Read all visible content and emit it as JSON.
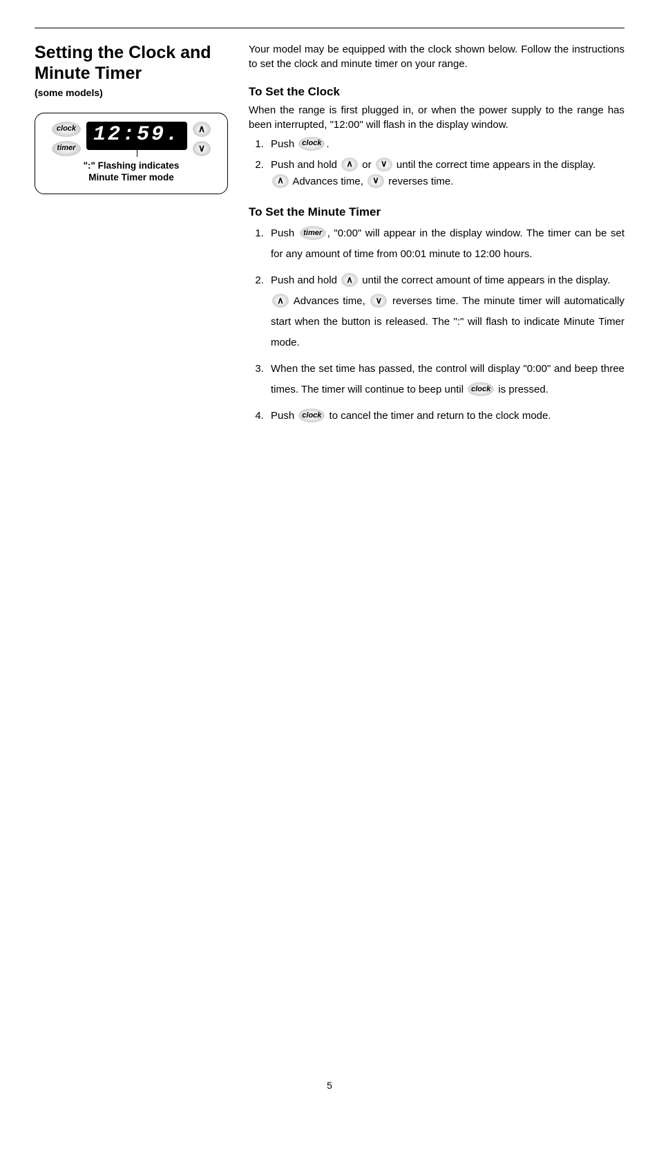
{
  "heading": "Setting the Clock and Minute Timer",
  "subtitle": "(some models)",
  "panel": {
    "btn_clock": "clock",
    "btn_timer": "timer",
    "up": "∧",
    "down": "∨",
    "display": "12:59.",
    "caption_line1": "\":\" Flashing indicates",
    "caption_line2": "Minute Timer mode"
  },
  "intro": "Your model may be equipped with the clock shown below. Follow the instructions to set the clock and minute timer on your range.",
  "section1": {
    "title": "To Set the Clock",
    "lead": "When the range is first plugged in, or when the power supply to the range has been interrupted, \"12:00\" will flash in the display window.",
    "step1_a": "Push ",
    "step1_b": ".",
    "step2_a": "Push and hold ",
    "step2_b": " or ",
    "step2_c": " until the correct time appears in the display.",
    "step2_note_a": " Advances time, ",
    "step2_note_b": " reverses time."
  },
  "section2": {
    "title": "To Set the Minute Timer",
    "step1_a": "Push ",
    "step1_b": ", \"0:00\" will appear in the display window. The timer can be set for any amount of time from 00:01 minute to 12:00 hours.",
    "step2_a": "Push and hold ",
    "step2_b": " until the correct amount of time appears in the display.",
    "step2_note_a": " Advances time, ",
    "step2_note_b": " reverses time.  The minute timer will automatically start when the button is released.  The \":\" will flash to indicate Minute Timer mode.",
    "step3_a": "When the set time has passed, the control will display \"0:00\" and beep three times.  The timer will continue to beep until ",
    "step3_b": " is pressed.",
    "step4_a": "Push ",
    "step4_b": " to cancel the timer and return to the clock mode."
  },
  "buttons": {
    "clock": "clock",
    "timer": "timer",
    "up": "∧",
    "down": "∨"
  },
  "page_number": "5"
}
